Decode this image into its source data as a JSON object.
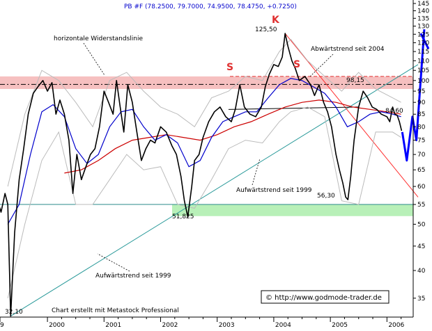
{
  "chart_data": {
    "type": "line",
    "title": "PB #F (78.2500, 79.7000, 74.9500, 78.4750, +0.7250)",
    "ylim": [
      31,
      145
    ],
    "y_scale": "log",
    "y_ticks": [
      35,
      40,
      45,
      50,
      55,
      60,
      65,
      70,
      75,
      80,
      85,
      90,
      95,
      100,
      105,
      110,
      115,
      120,
      125,
      130,
      135,
      140,
      145
    ],
    "x_ticks": [
      "2000",
      "2001",
      "2002",
      "2003",
      "2004",
      "2005",
      "2006"
    ],
    "x_tick_partial_left": "9",
    "x_range": [
      1999.1,
      2006.55
    ],
    "grid": false,
    "series": [
      {
        "role": "price",
        "color": "#000000",
        "points": [
          [
            1999.1,
            57
          ],
          [
            1999.18,
            53
          ],
          [
            1999.25,
            58
          ],
          [
            1999.3,
            55
          ],
          [
            1999.35,
            32.1
          ],
          [
            1999.42,
            48
          ],
          [
            1999.5,
            62
          ],
          [
            1999.58,
            72
          ],
          [
            1999.66,
            85
          ],
          [
            1999.75,
            94
          ],
          [
            1999.83,
            97
          ],
          [
            1999.92,
            100
          ],
          [
            2000.0,
            95
          ],
          [
            2000.08,
            99
          ],
          [
            2000.15,
            85
          ],
          [
            2000.22,
            91
          ],
          [
            2000.3,
            85
          ],
          [
            2000.38,
            75
          ],
          [
            2000.45,
            58
          ],
          [
            2000.52,
            70
          ],
          [
            2000.6,
            62
          ],
          [
            2000.68,
            66
          ],
          [
            2000.76,
            70
          ],
          [
            2000.84,
            72
          ],
          [
            2000.92,
            80
          ],
          [
            2001.0,
            95
          ],
          [
            2001.08,
            90
          ],
          [
            2001.16,
            85
          ],
          [
            2001.22,
            100
          ],
          [
            2001.28,
            89
          ],
          [
            2001.35,
            78
          ],
          [
            2001.42,
            98
          ],
          [
            2001.5,
            90
          ],
          [
            2001.58,
            78
          ],
          [
            2001.66,
            68
          ],
          [
            2001.74,
            72
          ],
          [
            2001.82,
            75
          ],
          [
            2001.9,
            74
          ],
          [
            2002.0,
            80
          ],
          [
            2002.1,
            78
          ],
          [
            2002.2,
            73
          ],
          [
            2002.28,
            70
          ],
          [
            2002.36,
            63
          ],
          [
            2002.42,
            56
          ],
          [
            2002.48,
            51.825
          ],
          [
            2002.55,
            60
          ],
          [
            2002.6,
            68
          ],
          [
            2002.68,
            70
          ],
          [
            2002.75,
            76
          ],
          [
            2002.85,
            82
          ],
          [
            2002.95,
            86
          ],
          [
            2003.05,
            88
          ],
          [
            2003.15,
            84
          ],
          [
            2003.25,
            82
          ],
          [
            2003.32,
            87
          ],
          [
            2003.4,
            98
          ],
          [
            2003.48,
            88
          ],
          [
            2003.58,
            85
          ],
          [
            2003.68,
            84
          ],
          [
            2003.78,
            88
          ],
          [
            2003.85,
            97
          ],
          [
            2003.92,
            103
          ],
          [
            2004.0,
            108
          ],
          [
            2004.08,
            107
          ],
          [
            2004.15,
            112
          ],
          [
            2004.2,
            125.5
          ],
          [
            2004.25,
            118
          ],
          [
            2004.32,
            110
          ],
          [
            2004.38,
            106
          ],
          [
            2004.45,
            100
          ],
          [
            2004.55,
            102
          ],
          [
            2004.65,
            98
          ],
          [
            2004.72,
            93
          ],
          [
            2004.8,
            98
          ],
          [
            2004.88,
            90
          ],
          [
            2004.95,
            86
          ],
          [
            2005.02,
            80
          ],
          [
            2005.1,
            70
          ],
          [
            2005.16,
            65
          ],
          [
            2005.22,
            61
          ],
          [
            2005.27,
            57
          ],
          [
            2005.31,
            56.3
          ],
          [
            2005.36,
            63
          ],
          [
            2005.42,
            75
          ],
          [
            2005.5,
            88
          ],
          [
            2005.58,
            95
          ],
          [
            2005.66,
            92
          ],
          [
            2005.74,
            88
          ],
          [
            2005.82,
            87
          ],
          [
            2005.9,
            85
          ],
          [
            2006.0,
            84
          ],
          [
            2006.05,
            82
          ],
          [
            2006.1,
            88
          ],
          [
            2006.14,
            85
          ],
          [
            2006.18,
            84.6
          ],
          [
            2006.22,
            82
          ],
          [
            2006.26,
            78.47
          ]
        ]
      },
      {
        "role": "moving-average-blue",
        "color": "#0000cc",
        "points": [
          [
            1999.3,
            50
          ],
          [
            1999.5,
            55
          ],
          [
            1999.7,
            70
          ],
          [
            1999.9,
            86
          ],
          [
            2000.1,
            89
          ],
          [
            2000.3,
            84
          ],
          [
            2000.5,
            72
          ],
          [
            2000.7,
            67
          ],
          [
            2000.9,
            70
          ],
          [
            2001.1,
            80
          ],
          [
            2001.3,
            86
          ],
          [
            2001.5,
            87
          ],
          [
            2001.7,
            80
          ],
          [
            2001.9,
            75
          ],
          [
            2002.1,
            77
          ],
          [
            2002.3,
            74
          ],
          [
            2002.5,
            66
          ],
          [
            2002.7,
            68
          ],
          [
            2002.9,
            76
          ],
          [
            2003.1,
            82
          ],
          [
            2003.3,
            84
          ],
          [
            2003.5,
            86
          ],
          [
            2003.7,
            86
          ],
          [
            2003.9,
            92
          ],
          [
            2004.1,
            98
          ],
          [
            2004.3,
            101
          ],
          [
            2004.5,
            100
          ],
          [
            2004.7,
            97
          ],
          [
            2004.9,
            94
          ],
          [
            2005.1,
            88
          ],
          [
            2005.3,
            80
          ],
          [
            2005.5,
            82
          ],
          [
            2005.7,
            85
          ],
          [
            2005.9,
            86
          ],
          [
            2006.1,
            85
          ],
          [
            2006.25,
            84
          ]
        ]
      },
      {
        "role": "moving-average-red",
        "color": "#cc0000",
        "points": [
          [
            2000.3,
            64
          ],
          [
            2000.6,
            65
          ],
          [
            2000.9,
            68
          ],
          [
            2001.2,
            72
          ],
          [
            2001.5,
            75
          ],
          [
            2001.8,
            76
          ],
          [
            2002.1,
            77
          ],
          [
            2002.4,
            76
          ],
          [
            2002.7,
            75
          ],
          [
            2003.0,
            77
          ],
          [
            2003.3,
            80
          ],
          [
            2003.6,
            82
          ],
          [
            2003.9,
            85
          ],
          [
            2004.2,
            88
          ],
          [
            2004.5,
            90
          ],
          [
            2004.8,
            91
          ],
          [
            2005.1,
            90
          ],
          [
            2005.4,
            88
          ],
          [
            2005.7,
            87
          ],
          [
            2006.0,
            86
          ],
          [
            2006.25,
            85
          ]
        ]
      },
      {
        "role": "bollinger-bands",
        "color": "#bbbbbb",
        "upper": [
          [
            1999.3,
            60
          ],
          [
            1999.6,
            85
          ],
          [
            1999.9,
            105
          ],
          [
            2000.2,
            100
          ],
          [
            2000.5,
            90
          ],
          [
            2000.8,
            80
          ],
          [
            2001.1,
            100
          ],
          [
            2001.4,
            104
          ],
          [
            2001.7,
            95
          ],
          [
            2002.0,
            88
          ],
          [
            2002.3,
            85
          ],
          [
            2002.6,
            80
          ],
          [
            2002.9,
            92
          ],
          [
            2003.2,
            95
          ],
          [
            2003.5,
            102
          ],
          [
            2003.8,
            100
          ],
          [
            2004.1,
            115
          ],
          [
            2004.3,
            122
          ],
          [
            2004.6,
            110
          ],
          [
            2004.9,
            102
          ],
          [
            2005.2,
            95
          ],
          [
            2005.5,
            104
          ],
          [
            2005.8,
            96
          ],
          [
            2006.1,
            92
          ],
          [
            2006.25,
            90
          ]
        ],
        "lower": [
          [
            1999.3,
            35
          ],
          [
            1999.6,
            50
          ],
          [
            1999.9,
            68
          ],
          [
            2000.2,
            78
          ],
          [
            2000.5,
            55
          ],
          [
            2000.8,
            55
          ],
          [
            2001.1,
            62
          ],
          [
            2001.4,
            70
          ],
          [
            2001.7,
            65
          ],
          [
            2002.0,
            66
          ],
          [
            2002.3,
            55
          ],
          [
            2002.6,
            54
          ],
          [
            2002.9,
            62
          ],
          [
            2003.2,
            72
          ],
          [
            2003.5,
            75
          ],
          [
            2003.8,
            74
          ],
          [
            2004.1,
            82
          ],
          [
            2004.3,
            86
          ],
          [
            2004.6,
            88
          ],
          [
            2004.9,
            84
          ],
          [
            2005.2,
            56
          ],
          [
            2005.5,
            55
          ],
          [
            2005.8,
            78
          ],
          [
            2006.1,
            78
          ],
          [
            2006.25,
            76
          ]
        ]
      },
      {
        "role": "forecast",
        "color": "#0000ff",
        "points": [
          [
            2006.27,
            78
          ],
          [
            2006.35,
            68
          ],
          [
            2006.45,
            84
          ],
          [
            2006.52,
            75
          ],
          [
            2006.66,
            128
          ]
        ]
      }
    ],
    "annotations": {
      "resistance_zone": [
        96,
        102
      ],
      "resistance_line": 98.15,
      "neckline": [
        [
          2003.2,
          87
        ],
        [
          2005.5,
          88
        ]
      ],
      "support_zone": [
        52,
        55
      ],
      "support_line": 55,
      "uptrend_1999": [
        [
          1999.35,
          32.1
        ],
        [
          2006.55,
          108
        ]
      ],
      "downtrend_2004": [
        [
          2004.2,
          125.5
        ],
        [
          2006.55,
          57
        ]
      ]
    },
    "labels": {
      "resistance": "horizontale Widerstandslinie",
      "downtrend": "Abwärtstrend seit 2004",
      "uptrend_mid": "Aufwärtstrend seit 1999",
      "uptrend_low": "Aufwärtstrend seit 1999",
      "head": "K",
      "shoulder_left": "S",
      "shoulder_right": "S",
      "peak_value": "125,50",
      "level_value": "98,15",
      "current_value": "84,60",
      "low_2005": "56,30",
      "low_2002": "51,825",
      "low_1999": "32,10",
      "credit": "Chart erstellt mit Metastock Professional",
      "copyright": "© http://www.godmode-trader.de"
    },
    "colors": {
      "price": "#000000",
      "ma_short": "#0000cc",
      "ma_long": "#cc0000",
      "bands": "#bbbbbb",
      "resistance_zone": "#f6c0c0",
      "support_zone": "#b8f0b8",
      "uptrend": "#2a9a9a",
      "downtrend": "#ff3030",
      "forecast": "#0000ff",
      "header": "#0000cc"
    }
  }
}
